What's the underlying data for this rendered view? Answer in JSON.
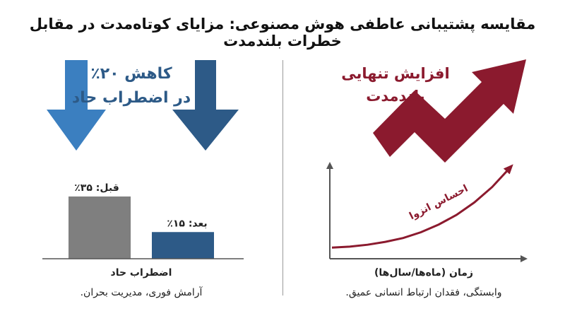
{
  "title": "مقایسه پشتیبانی عاطفی هوش مصنوعی: مزایای کوتاه‌مدت در مقابل خطرات بلندمدت",
  "colors": {
    "blue_light": "#3b7fc0",
    "blue_dark": "#2d5a87",
    "gray": "#7f7f7f",
    "crimson": "#8b1a2e",
    "axis": "#555555"
  },
  "left_panel": {
    "headline_line1": "کاهش ۲۰٪",
    "headline_line2": "در اضطراب حاد",
    "caption": "آرامش فوری، مدیریت بحران."
  },
  "right_panel": {
    "headline_line1": "افزایش تنهایی",
    "headline_line2": "بلندمدت",
    "caption": "وابستگی، فقدان ارتباط انسانی عمیق."
  },
  "chart_data": [
    {
      "type": "bar",
      "categories": [
        "قبل",
        "بعد"
      ],
      "values": [
        35,
        15
      ],
      "data_labels": [
        "قبل: ۳۵٪",
        "بعد: ۱۵٪"
      ],
      "colors": [
        "#7f7f7f",
        "#2d5a87"
      ],
      "xlabel": "اضطراب حاد",
      "ylim": [
        0,
        40
      ],
      "grid": false
    },
    {
      "type": "line",
      "series": [
        {
          "name": "احساس انزوا",
          "x": [
            0,
            0.1,
            0.2,
            0.3,
            0.4,
            0.5,
            0.6,
            0.7,
            0.8,
            0.9,
            1.0
          ],
          "values": [
            0.02,
            0.03,
            0.05,
            0.08,
            0.12,
            0.18,
            0.26,
            0.36,
            0.49,
            0.65,
            0.85
          ]
        }
      ],
      "xlabel": "زمان (ماه‌ها/سال‌ها)",
      "ylabel": "",
      "grid": false
    }
  ]
}
